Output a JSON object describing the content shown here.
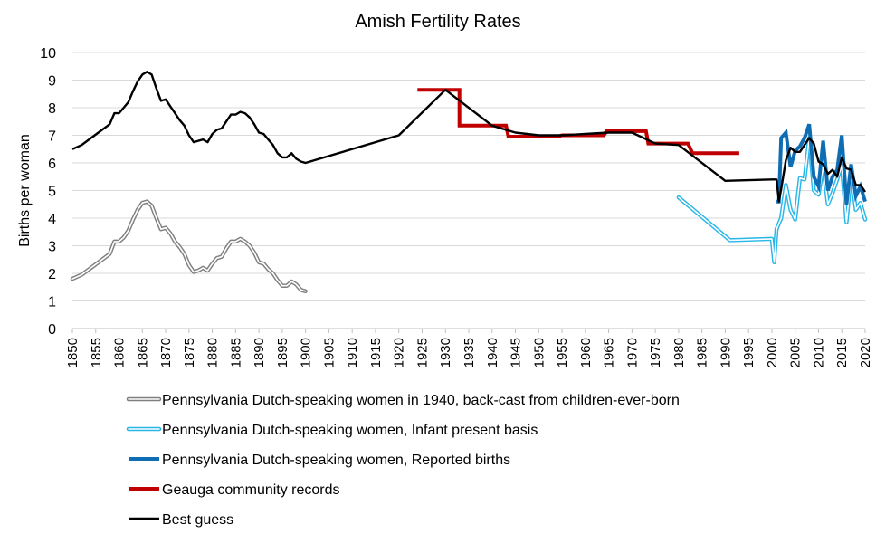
{
  "chart_data": {
    "type": "line",
    "title": "Amish Fertility Rates",
    "xlabel": "",
    "ylabel": "Births per woman",
    "xlim": [
      1850,
      2020
    ],
    "ylim": [
      0,
      10
    ],
    "yticks": [
      0,
      1,
      2,
      3,
      4,
      5,
      6,
      7,
      8,
      9,
      10
    ],
    "xticks": [
      1850,
      1855,
      1860,
      1865,
      1870,
      1875,
      1880,
      1885,
      1890,
      1895,
      1900,
      1905,
      1910,
      1915,
      1920,
      1925,
      1930,
      1935,
      1940,
      1945,
      1950,
      1955,
      1960,
      1965,
      1970,
      1975,
      1980,
      1985,
      1990,
      1995,
      2000,
      2005,
      2010,
      2015,
      2020
    ],
    "grid": "horizontal",
    "legend_position": "bottom",
    "series": [
      {
        "name": "Pennsylvania Dutch-speaking women in 1940, back-cast from children-ever-born",
        "style": "double",
        "color": "#7f7f7f",
        "x": [
          1850,
          1852,
          1854,
          1856,
          1858,
          1859,
          1860,
          1861,
          1862,
          1863,
          1864,
          1865,
          1866,
          1867,
          1868,
          1869,
          1870,
          1871,
          1872,
          1873,
          1874,
          1875,
          1876,
          1877,
          1878,
          1879,
          1880,
          1881,
          1882,
          1883,
          1884,
          1885,
          1886,
          1887,
          1888,
          1889,
          1890,
          1891,
          1892,
          1893,
          1894,
          1895,
          1896,
          1897,
          1898,
          1899,
          1900
        ],
        "y": [
          1.8,
          1.95,
          2.2,
          2.45,
          2.7,
          3.15,
          3.15,
          3.3,
          3.55,
          3.95,
          4.3,
          4.55,
          4.6,
          4.45,
          4.0,
          3.6,
          3.65,
          3.45,
          3.15,
          2.95,
          2.7,
          2.3,
          2.05,
          2.1,
          2.2,
          2.1,
          2.35,
          2.55,
          2.6,
          2.9,
          3.15,
          3.15,
          3.25,
          3.15,
          3.0,
          2.75,
          2.4,
          2.35,
          2.15,
          2.0,
          1.75,
          1.55,
          1.55,
          1.7,
          1.6,
          1.4,
          1.35
        ]
      },
      {
        "name": "Pennsylvania Dutch-speaking women, Infant present basis",
        "style": "double",
        "color": "#29b6e8",
        "x": [
          1980,
          1991,
          2000,
          2000.5,
          2001,
          2002,
          2003,
          2004,
          2005,
          2006,
          2007,
          2008,
          2009,
          2010,
          2011,
          2012,
          2013,
          2014,
          2015,
          2016,
          2017,
          2018,
          2019,
          2020
        ],
        "y": [
          4.75,
          3.2,
          3.25,
          2.4,
          3.6,
          4.0,
          5.2,
          4.3,
          3.95,
          5.45,
          5.4,
          6.9,
          5.0,
          4.85,
          5.9,
          4.5,
          4.9,
          5.4,
          5.9,
          3.85,
          5.6,
          4.3,
          4.55,
          3.95
        ]
      },
      {
        "name": "Pennsylvania Dutch-speaking women, Reported births",
        "style": "thick",
        "color": "#0f6db4",
        "x": [
          2001,
          2001.5,
          2002,
          2003,
          2004,
          2005,
          2006,
          2007,
          2008,
          2009,
          2010,
          2011,
          2012,
          2013,
          2014,
          2015,
          2016,
          2017,
          2018,
          2019,
          2020
        ],
        "y": [
          4.6,
          4.6,
          6.9,
          7.1,
          5.85,
          6.45,
          6.6,
          6.9,
          7.4,
          5.5,
          5.15,
          6.8,
          5.0,
          5.5,
          5.75,
          7.0,
          4.5,
          5.95,
          4.8,
          5.15,
          4.6
        ]
      },
      {
        "name": "Geauga community records",
        "style": "thick",
        "color": "#c00000",
        "x": [
          1924,
          1929,
          1933,
          1933,
          1939,
          1942,
          1943,
          1943.5,
          1944,
          1954,
          1955,
          1964,
          1964.5,
          1973,
          1973.5,
          1982,
          1983,
          1993
        ],
        "y": [
          8.65,
          8.65,
          8.65,
          7.35,
          7.35,
          7.35,
          7.35,
          6.95,
          6.95,
          6.95,
          7.0,
          7.0,
          7.15,
          7.15,
          6.7,
          6.7,
          6.35,
          6.35
        ]
      },
      {
        "name": "Best guess",
        "style": "solid",
        "color": "#000000",
        "x": [
          1850,
          1852,
          1854,
          1856,
          1858,
          1859,
          1860,
          1861,
          1862,
          1863,
          1864,
          1865,
          1866,
          1867,
          1868,
          1869,
          1870,
          1871,
          1872,
          1873,
          1874,
          1875,
          1876,
          1877,
          1878,
          1879,
          1880,
          1881,
          1882,
          1883,
          1884,
          1885,
          1886,
          1887,
          1888,
          1889,
          1890,
          1891,
          1892,
          1893,
          1894,
          1895,
          1896,
          1897,
          1898,
          1899,
          1900,
          1920,
          1930,
          1940,
          1945,
          1950,
          1955,
          1960,
          1965,
          1970,
          1975,
          1980,
          1990,
          2000,
          2001,
          2001.5,
          2002,
          2003,
          2004,
          2005,
          2006,
          2007,
          2008,
          2009,
          2010,
          2011,
          2012,
          2013,
          2014,
          2015,
          2016,
          2017,
          2018,
          2019,
          2020
        ],
        "y": [
          6.5,
          6.65,
          6.9,
          7.15,
          7.4,
          7.8,
          7.8,
          8.0,
          8.2,
          8.6,
          8.95,
          9.2,
          9.3,
          9.2,
          8.7,
          8.25,
          8.3,
          8.05,
          7.8,
          7.55,
          7.35,
          7.0,
          6.75,
          6.8,
          6.85,
          6.75,
          7.05,
          7.2,
          7.25,
          7.5,
          7.75,
          7.75,
          7.85,
          7.8,
          7.65,
          7.4,
          7.1,
          7.05,
          6.85,
          6.65,
          6.35,
          6.2,
          6.2,
          6.35,
          6.15,
          6.05,
          6.0,
          7.0,
          8.65,
          7.35,
          7.1,
          7.0,
          7.0,
          7.05,
          7.1,
          7.1,
          6.7,
          6.65,
          5.35,
          5.4,
          5.4,
          4.6,
          5.05,
          6.1,
          6.55,
          6.4,
          6.4,
          6.65,
          6.9,
          6.7,
          6.05,
          5.95,
          5.6,
          5.75,
          5.5,
          6.2,
          5.8,
          5.75,
          5.2,
          5.2,
          4.95
        ]
      }
    ]
  }
}
